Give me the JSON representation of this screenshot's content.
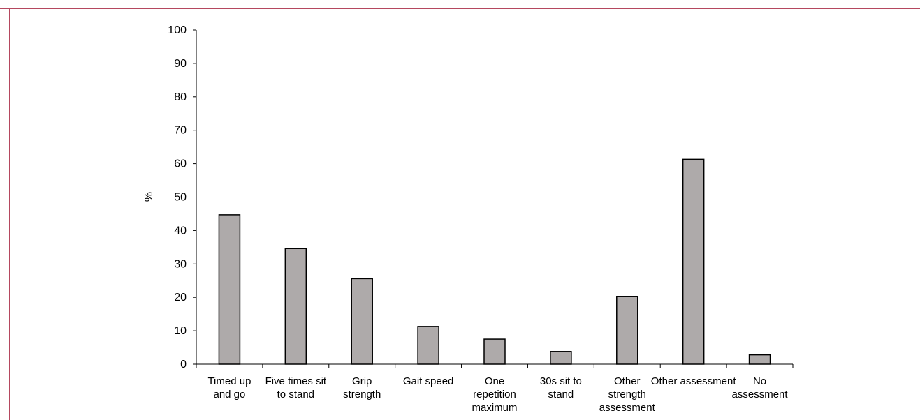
{
  "chart_data": {
    "type": "bar",
    "title": "",
    "xlabel": "",
    "ylabel": "%",
    "ylim": [
      0,
      100
    ],
    "yticks": [
      0,
      10,
      20,
      30,
      40,
      50,
      60,
      70,
      80,
      90,
      100
    ],
    "grid": false,
    "categories": [
      [
        "Timed up",
        "and go"
      ],
      [
        "Five times sit",
        "to stand"
      ],
      [
        "Grip",
        "strength"
      ],
      [
        "Gait speed"
      ],
      [
        "One",
        "repetition",
        "maximum"
      ],
      [
        "30s sit to",
        "stand"
      ],
      [
        "Other",
        "strength",
        "assessment"
      ],
      [
        "Other assessment"
      ],
      [
        "No",
        "assessment"
      ]
    ],
    "values": [
      44.7,
      34.6,
      25.6,
      11.3,
      7.5,
      3.8,
      20.3,
      61.3,
      2.8
    ],
    "colors": {
      "bar_fill": "#aeaaaa",
      "bar_stroke": "#000000",
      "axis": "#000000",
      "frame_accent": "#b5485f"
    }
  }
}
